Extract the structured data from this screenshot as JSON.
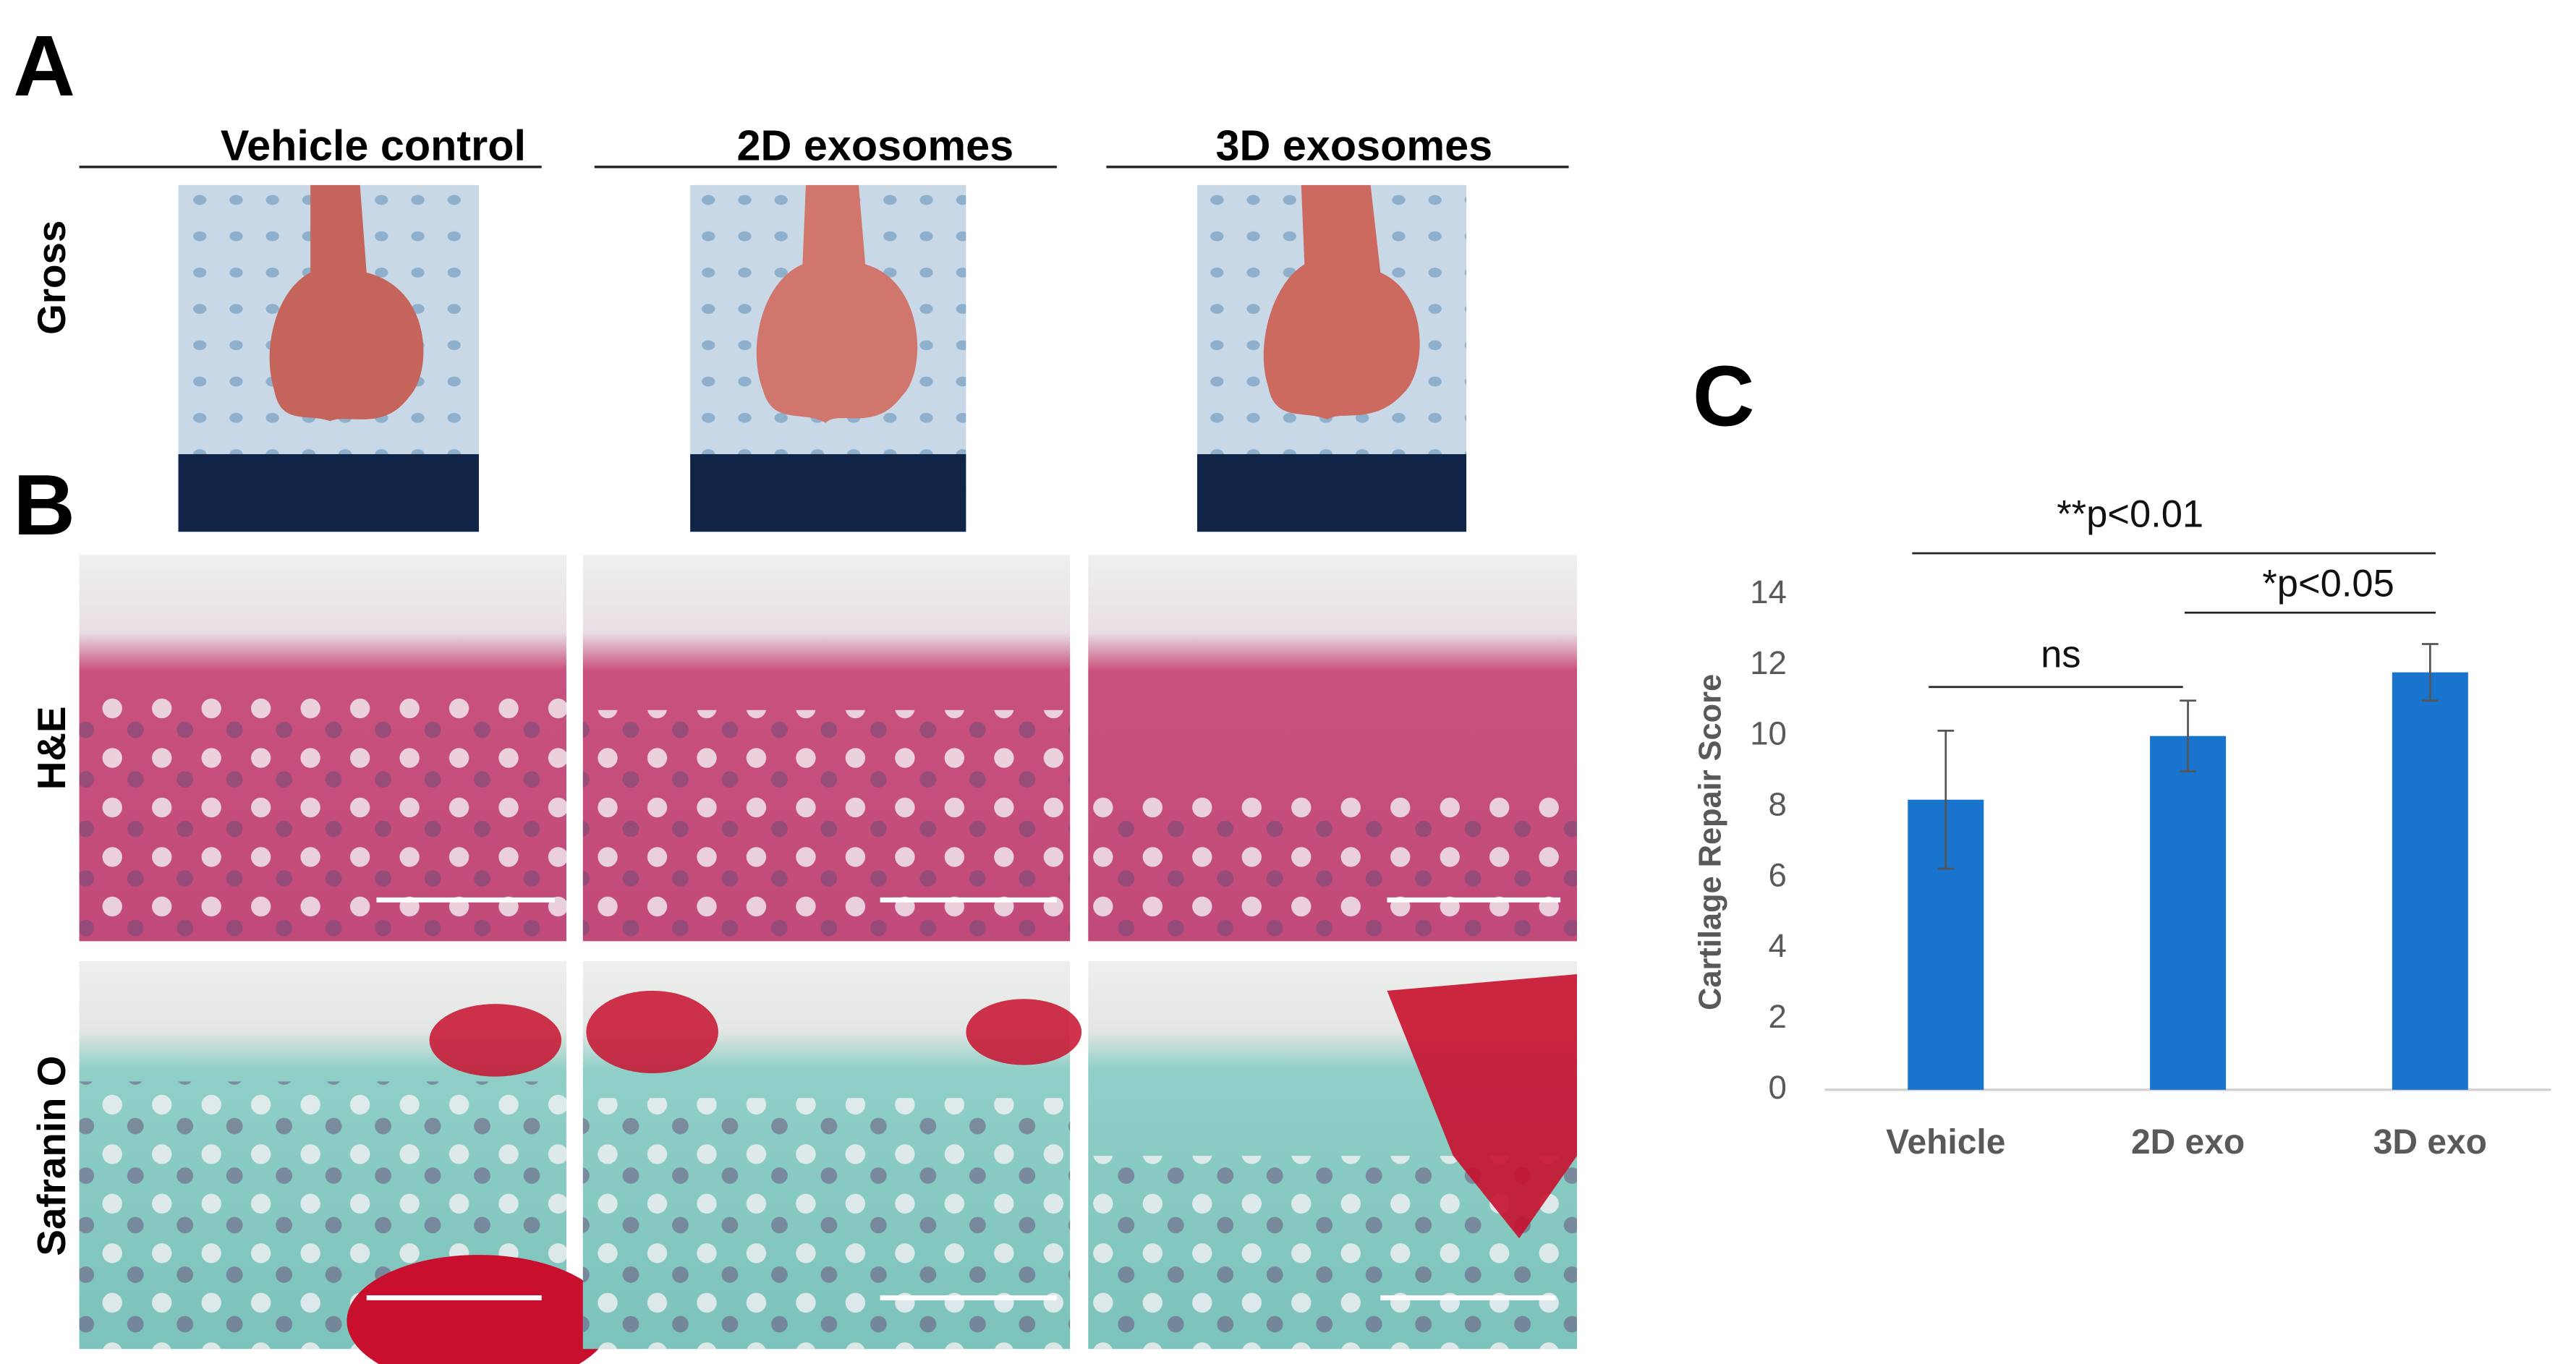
{
  "panels": {
    "A": {
      "label": "A",
      "columns": [
        "Vehicle control",
        "2D exosomes",
        "3D exosomes"
      ],
      "row_label": "Gross"
    },
    "B": {
      "label": "B",
      "row_labels": [
        "H&E",
        "Safranin O"
      ]
    },
    "C": {
      "label": "C"
    }
  },
  "chart_data": {
    "type": "bar",
    "ylabel": "Cartilage Repair Score",
    "categories": [
      "Vehicle",
      "2D exo",
      "3D exo"
    ],
    "values": [
      8.2,
      10.0,
      11.8
    ],
    "errors": [
      1.95,
      1.0,
      0.8
    ],
    "color": "#1874cd",
    "ylim": [
      0,
      14
    ],
    "yticks": [
      0,
      2,
      4,
      6,
      8,
      10,
      12,
      14
    ],
    "grid": false,
    "annotations": [
      "**p<0.01",
      "*p<0.05",
      "ns"
    ]
  }
}
